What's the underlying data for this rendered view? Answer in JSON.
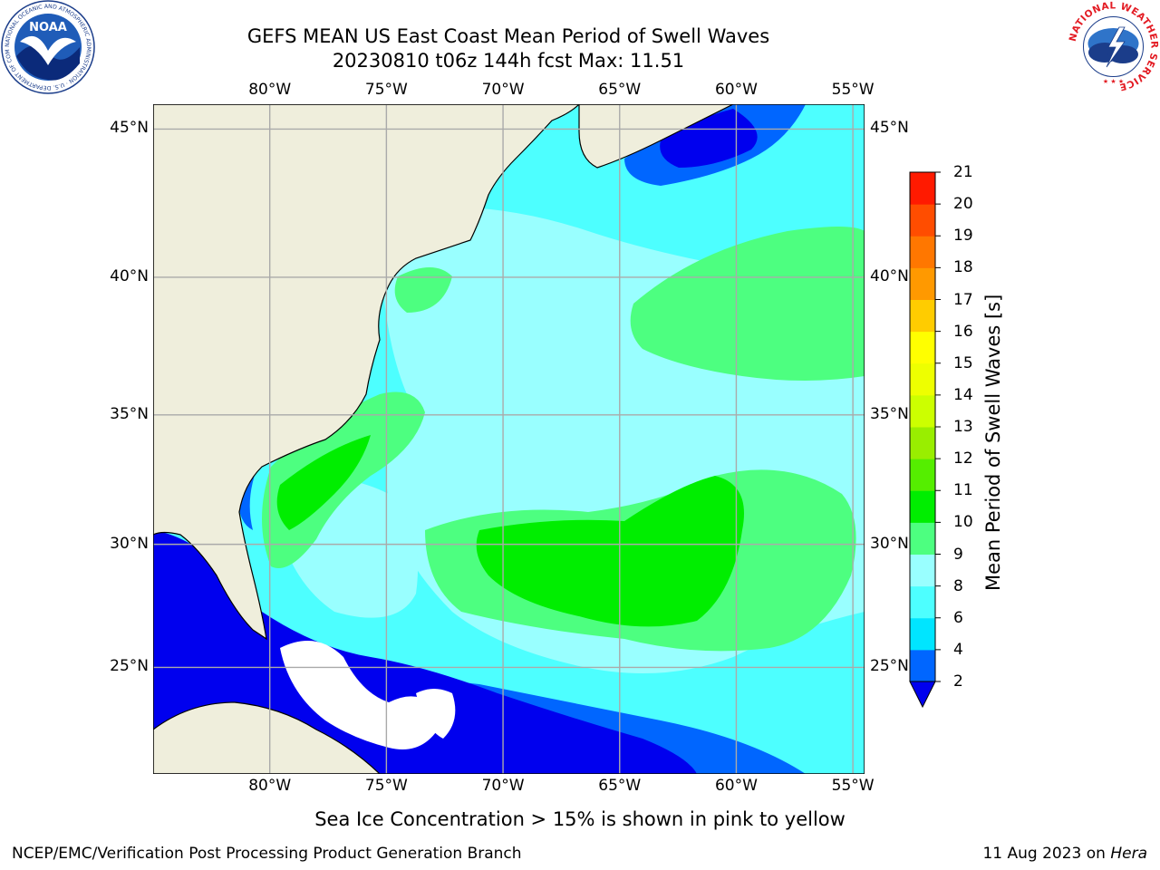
{
  "title": {
    "line1": "GEFS MEAN US East Coast Mean Period of Swell Waves",
    "line2": "20230810 t06z 144h fcst   Max: 11.51"
  },
  "axes": {
    "lon_labels": [
      "80°W",
      "75°W",
      "70°W",
      "65°W",
      "60°W",
      "55°W"
    ],
    "lon_values": [
      -80,
      -75,
      -70,
      -65,
      -60,
      -55
    ],
    "lat_labels": [
      "45°N",
      "40°N",
      "35°N",
      "30°N",
      "25°N"
    ],
    "lat_values": [
      45,
      40,
      35,
      30,
      25
    ],
    "lon_range": [
      -85,
      -54.5
    ],
    "lat_range": [
      20.5,
      45.8
    ]
  },
  "colorbar": {
    "label": "Mean Period of Swell Waves [s]",
    "ticks": [
      "21",
      "20",
      "19",
      "18",
      "17",
      "16",
      "15",
      "14",
      "13",
      "12",
      "11",
      "10",
      "9",
      "8",
      "6",
      "4",
      "2"
    ],
    "levels": [
      2,
      4,
      6,
      8,
      9,
      10,
      11,
      12,
      13,
      14,
      15,
      16,
      17,
      18,
      19,
      20,
      21
    ],
    "colors": [
      "#0066ff",
      "#00e5ff",
      "#4dffff",
      "#99ffff",
      "#4dff80",
      "#00ee00",
      "#55ee00",
      "#99ee00",
      "#ccff00",
      "#eeff00",
      "#ffff00",
      "#ffcc00",
      "#ff9900",
      "#ff7700",
      "#ff4d00",
      "#ff1a00"
    ],
    "under_color": "#0000ee"
  },
  "colors": {
    "land": "#efeedc",
    "ice_free_white": "#ffffff",
    "grid": "#aaaaaa"
  },
  "note": "Sea Ice Concentration > 15% is shown in pink to yellow",
  "footer": {
    "left": "NCEP/EMC/Verification Post Processing Product Generation Branch",
    "right_date": "11 Aug 2023 on ",
    "right_host": "Hera"
  },
  "logos": {
    "noaa_text": "NOAA",
    "noaa_ring": "NATIONAL OCEANIC AND ATMOSPHERIC ADMINISTRATION · U.S. DEPARTMENT OF COMMERCE",
    "nws_ring": "NATIONAL WEATHER SERVICE"
  }
}
